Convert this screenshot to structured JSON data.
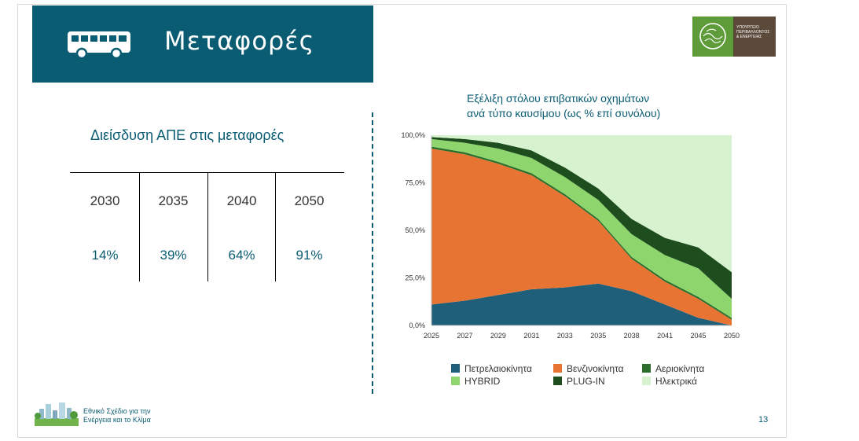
{
  "header": {
    "title": "Μεταφορές"
  },
  "logo": {
    "lines": [
      "ΥΠΟΥΡΓΕΙΟ",
      "ΠΕΡΙΒΑΛΛΟΝΤΟΣ",
      "& ΕΝΕΡΓΕΙΑΣ"
    ]
  },
  "left": {
    "title": "Διείσδυση ΑΠΕ στις μεταφορές",
    "years": [
      "2030",
      "2035",
      "2040",
      "2050"
    ],
    "values": [
      "14%",
      "39%",
      "64%",
      "91%"
    ]
  },
  "chart_title": [
    "Εξέλιξη στόλου επιβατικών οχημάτων",
    "ανά τύπο καυσίμου (ως % επί συνόλου)"
  ],
  "chart_data": {
    "type": "area",
    "stacked": true,
    "title": "Εξέλιξη στόλου επιβατικών οχημάτων ανά τύπο καυσίμου (ως % επί συνόλου)",
    "x": [
      "2025",
      "2027",
      "2029",
      "2031",
      "2033",
      "2035",
      "2038",
      "2041",
      "2045",
      "2050"
    ],
    "x_ticks": [
      "2025",
      "2027",
      "2029",
      "2031",
      "2033",
      "2035",
      "2038",
      "2041",
      "2045",
      "2050"
    ],
    "y_ticks": [
      "0,0%",
      "25,0%",
      "50,0%",
      "75,0%",
      "100,0%"
    ],
    "ylim": [
      0,
      100
    ],
    "series": [
      {
        "name": "Πετρελαιοκίνητα",
        "color": "#1f5f7a",
        "values": [
          11,
          13,
          16,
          19,
          20,
          22,
          18,
          11,
          4,
          0
        ]
      },
      {
        "name": "Βενζινοκίνητα",
        "color": "#e87433",
        "values": [
          82,
          77,
          69,
          60,
          48,
          33,
          17,
          12,
          10,
          3
        ]
      },
      {
        "name": "Αεριοκίνητα",
        "color": "#2b6e2b",
        "values": [
          1,
          1,
          1,
          1,
          1,
          1,
          1,
          1,
          1,
          1
        ]
      },
      {
        "name": "HYBRID",
        "color": "#8fd56e",
        "values": [
          4,
          5,
          7,
          8,
          9,
          10,
          12,
          13,
          15,
          10
        ]
      },
      {
        "name": "PLUG-IN",
        "color": "#1e4d1e",
        "values": [
          1,
          2,
          3,
          4,
          5,
          6,
          8,
          9,
          11,
          14
        ]
      },
      {
        "name": "Ηλεκτρικά",
        "color": "#d6f2ce",
        "values": [
          1,
          2,
          4,
          8,
          17,
          28,
          44,
          54,
          59,
          72
        ]
      }
    ],
    "legend": [
      {
        "name": "Πετρελαιοκίνητα",
        "color": "#1f5f7a"
      },
      {
        "name": "Βενζινοκίνητα",
        "color": "#e87433"
      },
      {
        "name": "Αεριοκίνητα",
        "color": "#2b6e2b"
      },
      {
        "name": "HYBRID",
        "color": "#8fd56e"
      },
      {
        "name": "PLUG-IN",
        "color": "#1e4d1e"
      },
      {
        "name": "Ηλεκτρικά",
        "color": "#d6f2ce"
      }
    ],
    "legend_position": "bottom",
    "grid": false
  },
  "footer": {
    "lines": [
      "Εθνικό Σχέδιο για την",
      "Ενέργεια και το Κλίμα"
    ]
  },
  "page_number": "13"
}
